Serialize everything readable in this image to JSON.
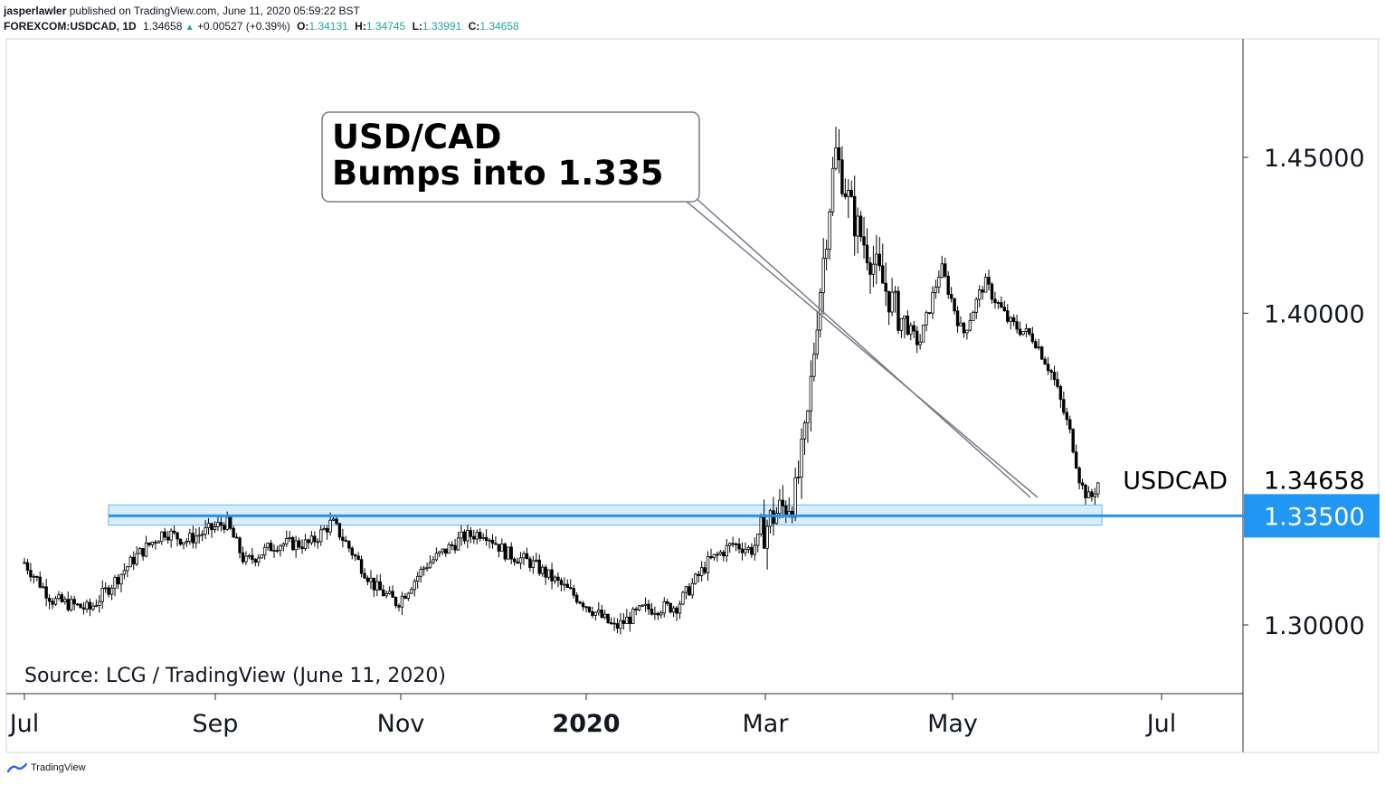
{
  "header": {
    "author": "jasperlawler",
    "published_text": "published on TradingView.com, June 11, 2020 05:59:22 BST",
    "symbol": "FOREXCOM:USDCAD, 1D",
    "last": "1.34658",
    "change": "+0.00527 (+0.39%)",
    "o_label": "O:",
    "o_value": "1.34131",
    "h_label": "H:",
    "h_value": "1.34745",
    "l_label": "L:",
    "l_value": "1.33991",
    "c_label": "C:",
    "c_value": "1.34658"
  },
  "footer": {
    "logo_text": "TradingView"
  },
  "colors": {
    "accent": "#2196f3",
    "candle": "#000000",
    "zone_fill": "#bbdefb",
    "change_up": "#26a69a"
  },
  "chart_data": {
    "type": "candlestick",
    "symbol": "USDCAD",
    "timeframe": "1D",
    "ylim": [
      1.28,
      1.495
    ],
    "y_ticks": [
      {
        "value": 1.3,
        "label": "1.30000"
      },
      {
        "value": 1.4,
        "label": "1.40000"
      },
      {
        "value": 1.45,
        "label": "1.45000"
      }
    ],
    "x_ticks": [
      {
        "label": "Jul",
        "bold": false
      },
      {
        "label": "Sep",
        "bold": false
      },
      {
        "label": "Nov",
        "bold": false
      },
      {
        "label": "2020",
        "bold": true
      },
      {
        "label": "Mar",
        "bold": false
      },
      {
        "label": "May",
        "bold": false
      },
      {
        "label": "Jul",
        "bold": false
      }
    ],
    "last_price": {
      "value": 1.34658,
      "label": "1.34658",
      "name": "USDCAD"
    },
    "level": {
      "value": 1.335,
      "label": "1.33500"
    },
    "zone": [
      1.332,
      1.3385
    ],
    "callout": {
      "line1": "USD/CAD",
      "line2": "Bumps into 1.335"
    },
    "source": "Source: LCG / TradingView (June 11, 2020)",
    "grid": false,
    "price_path": [
      [
        "2019-07-01",
        1.32
      ],
      [
        "2019-07-10",
        1.308
      ],
      [
        "2019-07-22",
        1.305
      ],
      [
        "2019-08-06",
        1.322
      ],
      [
        "2019-08-15",
        1.33
      ],
      [
        "2019-08-22",
        1.327
      ],
      [
        "2019-09-04",
        1.333
      ],
      [
        "2019-09-10",
        1.32
      ],
      [
        "2019-09-20",
        1.326
      ],
      [
        "2019-10-01",
        1.326
      ],
      [
        "2019-10-08",
        1.333
      ],
      [
        "2019-10-14",
        1.324
      ],
      [
        "2019-10-22",
        1.312
      ],
      [
        "2019-10-29",
        1.307
      ],
      [
        "2019-11-07",
        1.319
      ],
      [
        "2019-11-19",
        1.328
      ],
      [
        "2019-11-26",
        1.33
      ],
      [
        "2019-12-03",
        1.323
      ],
      [
        "2019-12-11",
        1.32
      ],
      [
        "2019-12-19",
        1.314
      ],
      [
        "2019-12-27",
        1.308
      ],
      [
        "2020-01-07",
        1.299
      ],
      [
        "2020-01-16",
        1.305
      ],
      [
        "2020-01-27",
        1.306
      ],
      [
        "2020-02-06",
        1.32
      ],
      [
        "2020-02-14",
        1.326
      ],
      [
        "2020-02-20",
        1.324
      ],
      [
        "2020-02-27",
        1.335
      ],
      [
        "2020-03-05",
        1.341
      ],
      [
        "2020-03-09",
        1.365
      ],
      [
        "2020-03-12",
        1.398
      ],
      [
        "2020-03-18",
        1.452
      ],
      [
        "2020-03-24",
        1.43
      ],
      [
        "2020-04-01",
        1.412
      ],
      [
        "2020-04-07",
        1.4
      ],
      [
        "2020-04-14",
        1.39
      ],
      [
        "2020-04-21",
        1.415
      ],
      [
        "2020-04-28",
        1.393
      ],
      [
        "2020-05-05",
        1.41
      ],
      [
        "2020-05-13",
        1.397
      ],
      [
        "2020-05-21",
        1.392
      ],
      [
        "2020-05-27",
        1.38
      ],
      [
        "2020-06-02",
        1.36
      ],
      [
        "2020-06-05",
        1.345
      ],
      [
        "2020-06-08",
        1.34
      ],
      [
        "2020-06-11",
        1.3466
      ]
    ]
  }
}
